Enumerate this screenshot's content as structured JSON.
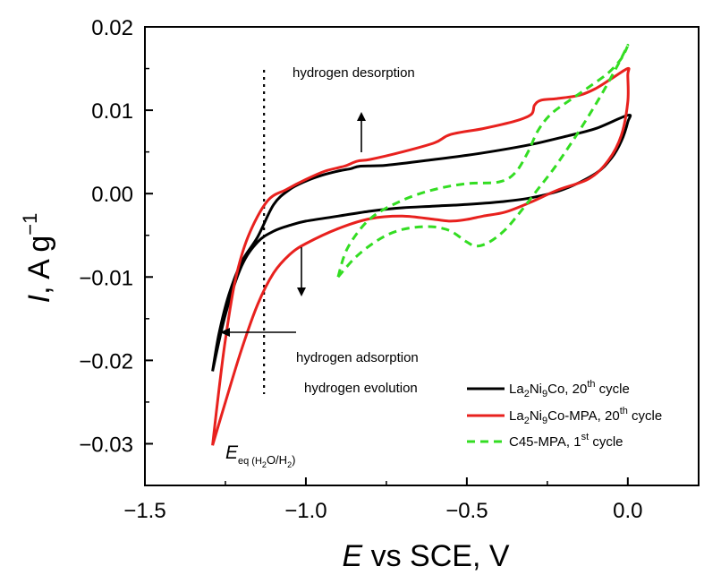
{
  "chart_data": {
    "type": "line",
    "xlabel": {
      "var": "E",
      "rest": " vs SCE, V"
    },
    "ylabel": {
      "var": "I",
      "rest": ", A g",
      "sup": "−1"
    },
    "xlim": [
      -1.5,
      0.22
    ],
    "ylim": [
      -0.035,
      0.02
    ],
    "x_ticks": [
      {
        "value": -1.5,
        "label": "−1.5"
      },
      {
        "value": -1.0,
        "label": "−1.0"
      },
      {
        "value": -0.5,
        "label": "−0.5"
      },
      {
        "value": 0.0,
        "label": "0.0"
      }
    ],
    "y_ticks": [
      {
        "value": 0.02,
        "label": "0.02"
      },
      {
        "value": 0.01,
        "label": "0.01"
      },
      {
        "value": 0.0,
        "label": "0.00"
      },
      {
        "value": -0.01,
        "label": "−0.01"
      },
      {
        "value": -0.02,
        "label": "−0.02"
      },
      {
        "value": -0.03,
        "label": "−0.03"
      }
    ],
    "eq_line_x": -1.13,
    "annotations": {
      "desorption": "hydrogen desorption",
      "adsorption": "hydrogen adsorption",
      "evolution": "hydrogen evolution",
      "eq_label": {
        "main": "E",
        "sub": "eq (H",
        "sub2": "2",
        "sub3": "O/H",
        "sub4": "2",
        "sub5": ")"
      }
    },
    "series": [
      {
        "name": "La2Ni9Co, 20th cycle",
        "legend": {
          "a": "La",
          "a_sub": "2",
          "b": "Ni",
          "b_sub": "9",
          "c": "Co, 20",
          "sup": "th",
          "d": " cycle"
        },
        "color": "#000000",
        "dash": "none",
        "points": [
          [
            -1.29,
            -0.0213
          ],
          [
            -1.27,
            -0.0168
          ],
          [
            -1.24,
            -0.0122
          ],
          [
            -1.2,
            -0.0082
          ],
          [
            -1.15,
            -0.0052
          ],
          [
            -1.1,
            -0.0013
          ],
          [
            -1.05,
            0.0005
          ],
          [
            -1.0,
            0.0015
          ],
          [
            -0.95,
            0.0022
          ],
          [
            -0.9,
            0.0027
          ],
          [
            -0.86,
            0.003
          ],
          [
            -0.83,
            0.0033
          ],
          [
            -0.75,
            0.0034
          ],
          [
            -0.6,
            0.0041
          ],
          [
            -0.5,
            0.0046
          ],
          [
            -0.4,
            0.0052
          ],
          [
            -0.3,
            0.0059
          ],
          [
            -0.2,
            0.0068
          ],
          [
            -0.1,
            0.0078
          ],
          [
            0.0,
            0.0094
          ],
          [
            0.0,
            0.0086
          ],
          [
            -0.02,
            0.0063
          ],
          [
            -0.05,
            0.0043
          ],
          [
            -0.1,
            0.0024
          ],
          [
            -0.2,
            0.0005
          ],
          [
            -0.3,
            -0.0005
          ],
          [
            -0.4,
            -0.001
          ],
          [
            -0.5,
            -0.0013
          ],
          [
            -0.6,
            -0.0015
          ],
          [
            -0.7,
            -0.0017
          ],
          [
            -0.8,
            -0.0021
          ],
          [
            -0.9,
            -0.0027
          ],
          [
            -1.0,
            -0.0033
          ],
          [
            -1.05,
            -0.0038
          ],
          [
            -1.1,
            -0.0045
          ],
          [
            -1.15,
            -0.0058
          ],
          [
            -1.2,
            -0.0087
          ],
          [
            -1.25,
            -0.0145
          ],
          [
            -1.29,
            -0.0213
          ]
        ]
      },
      {
        "name": "La2Ni9Co-MPA, 20th cycle",
        "legend": {
          "a": "La",
          "a_sub": "2",
          "b": "Ni",
          "b_sub": "9",
          "c": "Co-MPA, 20",
          "sup": "th",
          "d": " cycle"
        },
        "color": "#e8211e",
        "dash": "none",
        "points": [
          [
            -1.29,
            -0.0302
          ],
          [
            -1.27,
            -0.0235
          ],
          [
            -1.25,
            -0.0175
          ],
          [
            -1.22,
            -0.0105
          ],
          [
            -1.18,
            -0.0052
          ],
          [
            -1.12,
            -0.0009
          ],
          [
            -1.06,
            0.0005
          ],
          [
            -1.0,
            0.0017
          ],
          [
            -0.94,
            0.0027
          ],
          [
            -0.88,
            0.0033
          ],
          [
            -0.84,
            0.0039
          ],
          [
            -0.8,
            0.0041
          ],
          [
            -0.7,
            0.005
          ],
          [
            -0.6,
            0.0061
          ],
          [
            -0.55,
            0.0071
          ],
          [
            -0.45,
            0.0078
          ],
          [
            -0.35,
            0.0087
          ],
          [
            -0.3,
            0.0095
          ],
          [
            -0.29,
            0.0106
          ],
          [
            -0.27,
            0.0112
          ],
          [
            -0.22,
            0.0114
          ],
          [
            -0.15,
            0.0118
          ],
          [
            -0.1,
            0.0126
          ],
          [
            -0.05,
            0.0138
          ],
          [
            0.0,
            0.015
          ],
          [
            0.0,
            0.0142
          ],
          [
            0.0,
            0.011
          ],
          [
            -0.02,
            0.007
          ],
          [
            -0.06,
            0.004
          ],
          [
            -0.12,
            0.0018
          ],
          [
            -0.22,
            0.0004
          ],
          [
            -0.3,
            -0.001
          ],
          [
            -0.38,
            -0.0022
          ],
          [
            -0.45,
            -0.0027
          ],
          [
            -0.5,
            -0.0031
          ],
          [
            -0.55,
            -0.0033
          ],
          [
            -0.6,
            -0.0031
          ],
          [
            -0.7,
            -0.0027
          ],
          [
            -0.8,
            -0.003
          ],
          [
            -0.9,
            -0.0042
          ],
          [
            -1.0,
            -0.006
          ],
          [
            -1.05,
            -0.0073
          ],
          [
            -1.1,
            -0.0095
          ],
          [
            -1.15,
            -0.0133
          ],
          [
            -1.2,
            -0.0187
          ],
          [
            -1.25,
            -0.025
          ],
          [
            -1.29,
            -0.0302
          ]
        ]
      },
      {
        "name": "C45-MPA, 1st cycle",
        "legend": {
          "a": "C45-MPA, 1",
          "a_sub": "",
          "b": "",
          "b_sub": "",
          "c": "",
          "sup": "st",
          "d": " cycle"
        },
        "color": "#33dd22",
        "dash": "9,6",
        "points": [
          [
            -0.9,
            -0.01
          ],
          [
            -0.85,
            -0.0078
          ],
          [
            -0.8,
            -0.0062
          ],
          [
            -0.75,
            -0.005
          ],
          [
            -0.7,
            -0.0043
          ],
          [
            -0.65,
            -0.004
          ],
          [
            -0.6,
            -0.004
          ],
          [
            -0.55,
            -0.0045
          ],
          [
            -0.5,
            -0.0058
          ],
          [
            -0.47,
            -0.0063
          ],
          [
            -0.43,
            -0.0058
          ],
          [
            -0.38,
            -0.0043
          ],
          [
            -0.33,
            -0.002
          ],
          [
            -0.28,
            0.0005
          ],
          [
            -0.23,
            0.003
          ],
          [
            -0.18,
            0.0058
          ],
          [
            -0.13,
            0.0088
          ],
          [
            -0.08,
            0.012
          ],
          [
            -0.03,
            0.0155
          ],
          [
            0.0,
            0.0178
          ],
          [
            -0.02,
            0.0162
          ],
          [
            -0.06,
            0.0145
          ],
          [
            -0.12,
            0.0128
          ],
          [
            -0.18,
            0.0112
          ],
          [
            -0.24,
            0.0095
          ],
          [
            -0.28,
            0.0075
          ],
          [
            -0.31,
            0.005
          ],
          [
            -0.35,
            0.0025
          ],
          [
            -0.4,
            0.0014
          ],
          [
            -0.5,
            0.0012
          ],
          [
            -0.6,
            0.0005
          ],
          [
            -0.7,
            -0.0008
          ],
          [
            -0.8,
            -0.003
          ],
          [
            -0.87,
            -0.0065
          ],
          [
            -0.9,
            -0.01
          ]
        ]
      }
    ],
    "grid": false,
    "legend_position": "bottom-right"
  }
}
